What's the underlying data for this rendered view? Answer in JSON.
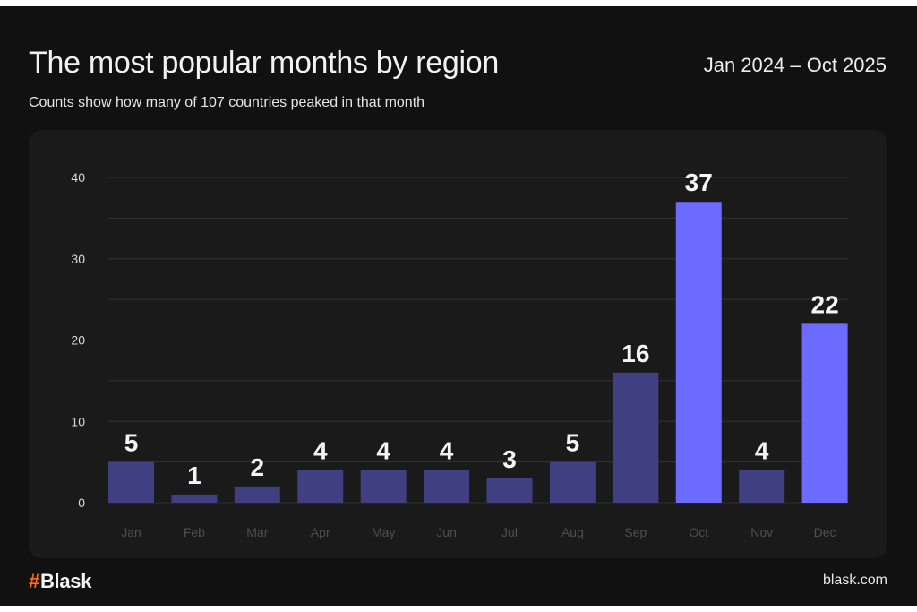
{
  "header": {
    "title": "The most popular months by region",
    "subtitle": "Counts show how many of 107 countries peaked in that month",
    "date_range": "Jan 2024 – Oct 2025"
  },
  "footer": {
    "logo_mark": "#",
    "logo_text": "Blask",
    "site": "blask.com"
  },
  "colors": {
    "background": "#111111",
    "card": "#1a1a1a",
    "bar_default": "#3f3f82",
    "bar_highlight": "#6b6bff",
    "gridline": "#333333",
    "brand_accent": "#ff6a13"
  },
  "chart_data": {
    "type": "bar",
    "title": "The most popular months by region",
    "subtitle": "Counts show how many of 107 countries peaked in that month",
    "xlabel": "",
    "ylabel": "",
    "categories": [
      "Jan",
      "Feb",
      "Mar",
      "Apr",
      "May",
      "Jun",
      "Jul",
      "Aug",
      "Sep",
      "Oct",
      "Nov",
      "Dec"
    ],
    "values": [
      5,
      1,
      2,
      4,
      4,
      4,
      3,
      5,
      16,
      37,
      4,
      22
    ],
    "highlighted": [
      "Oct",
      "Dec"
    ],
    "ylim": [
      0,
      40
    ],
    "yticks": [
      0,
      10,
      20,
      30,
      40
    ],
    "grid": true,
    "grid_step": 5,
    "data_labels": true,
    "legend": "none"
  }
}
